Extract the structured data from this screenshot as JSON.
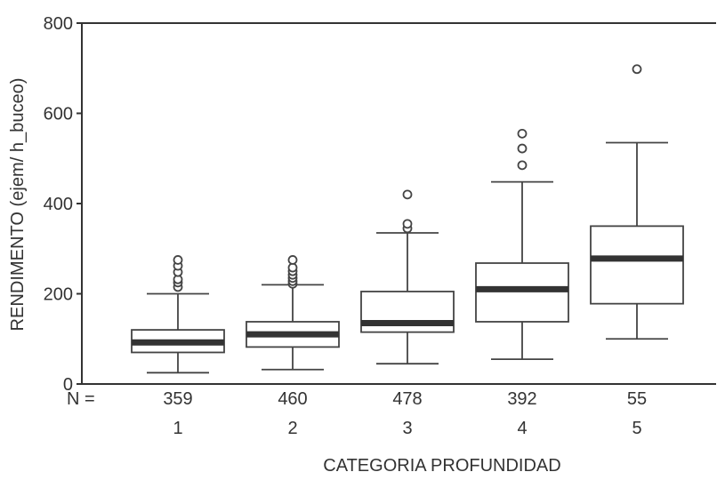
{
  "chart_data": {
    "type": "boxplot",
    "title": "",
    "xlabel": "CATEGORIA PROFUNDIDAD",
    "ylabel": "RENDIMENTO (ejem/ h_buceo)",
    "ylim": [
      0,
      800
    ],
    "yticks": [
      0,
      200,
      400,
      600,
      800
    ],
    "n_prefix": "N =",
    "categories": [
      {
        "label": "1",
        "n": "359",
        "whisker_low": 25,
        "q1": 70,
        "median": 92,
        "q3": 120,
        "whisker_high": 200,
        "outliers": [
          215,
          225,
          232,
          248,
          262,
          275
        ]
      },
      {
        "label": "2",
        "n": "460",
        "whisker_low": 32,
        "q1": 82,
        "median": 110,
        "q3": 138,
        "whisker_high": 220,
        "outliers": [
          222,
          228,
          235,
          242,
          250,
          258,
          275
        ]
      },
      {
        "label": "3",
        "n": "478",
        "whisker_low": 45,
        "q1": 115,
        "median": 135,
        "q3": 205,
        "whisker_high": 335,
        "outliers": [
          345,
          355,
          420
        ]
      },
      {
        "label": "4",
        "n": "392",
        "whisker_low": 55,
        "q1": 138,
        "median": 210,
        "q3": 268,
        "whisker_high": 448,
        "outliers": [
          485,
          522,
          555
        ]
      },
      {
        "label": "5",
        "n": "55",
        "whisker_low": 100,
        "q1": 178,
        "median": 278,
        "q3": 350,
        "whisker_high": 535,
        "outliers": [
          698
        ]
      }
    ]
  }
}
